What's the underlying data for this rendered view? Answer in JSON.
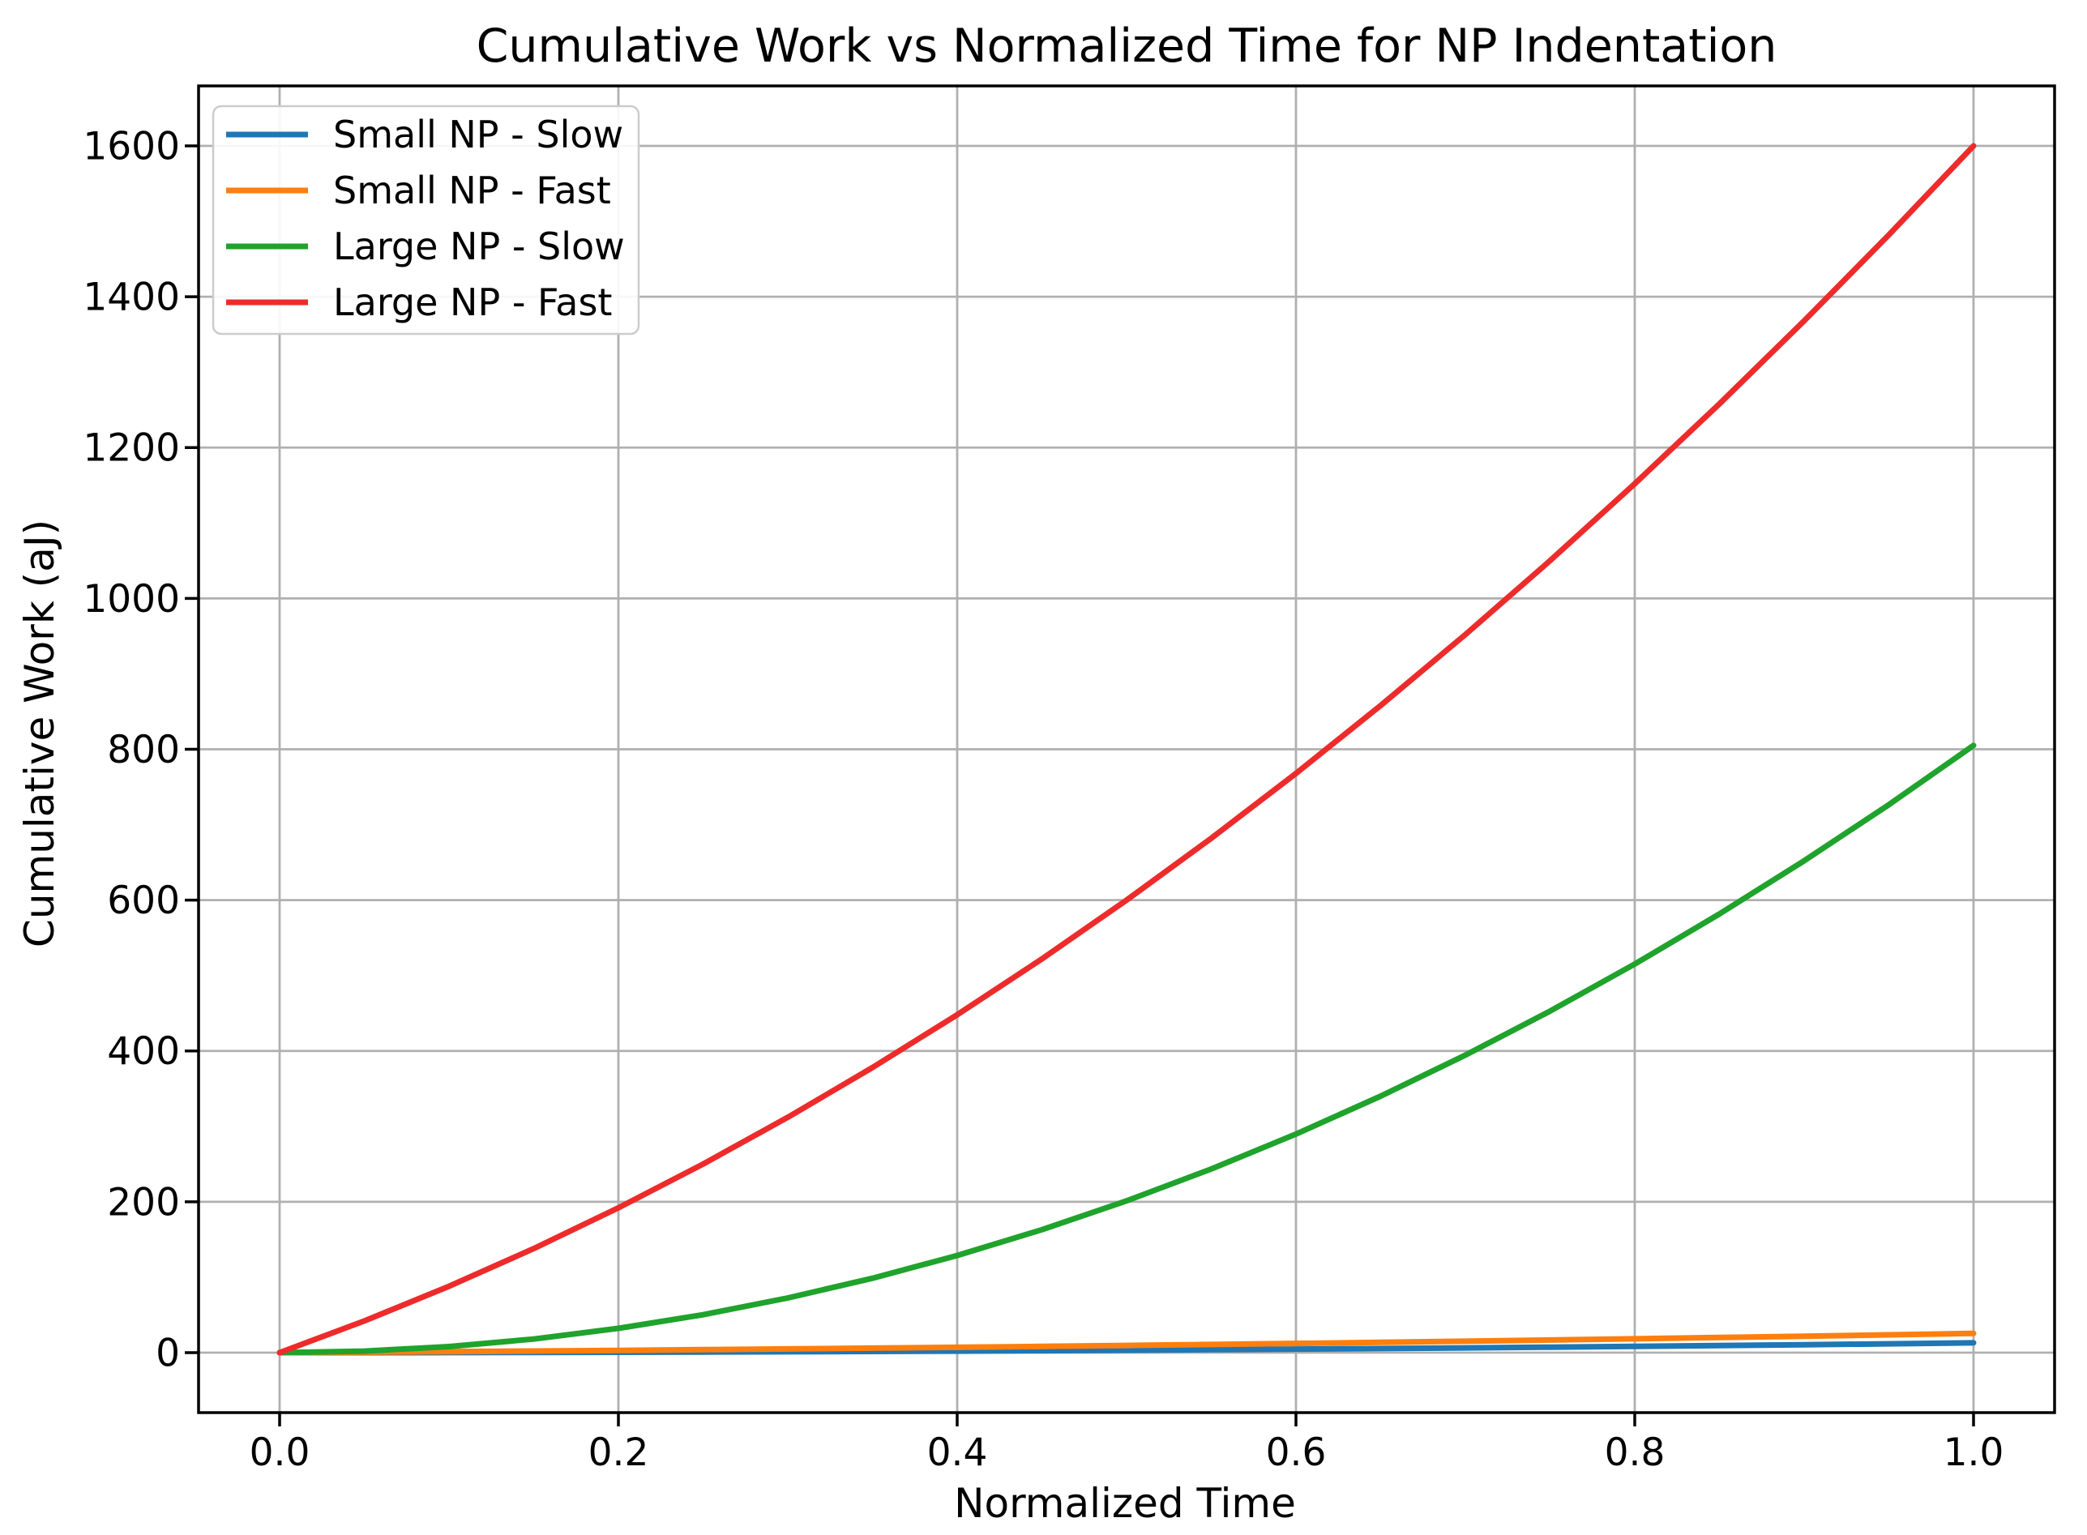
{
  "chart_data": {
    "type": "line",
    "title": "Cumulative Work vs Normalized Time for NP Indentation",
    "xlabel": "Normalized Time",
    "ylabel": "Cumulative Work (aJ)",
    "xlim": [
      -0.05,
      1.05
    ],
    "ylim": [
      -80,
      1680
    ],
    "grid": true,
    "legend_position": "upper left",
    "xticks": {
      "values": [
        0.0,
        0.2,
        0.4,
        0.6,
        0.8,
        1.0
      ],
      "labels": [
        "0.0",
        "0.2",
        "0.4",
        "0.6",
        "0.8",
        "1.0"
      ]
    },
    "yticks": {
      "values": [
        0,
        200,
        400,
        600,
        800,
        1000,
        1200,
        1400,
        1600
      ],
      "labels": [
        "0",
        "200",
        "400",
        "600",
        "800",
        "1000",
        "1200",
        "1400",
        "1600"
      ]
    },
    "x": [
      0,
      0.05,
      0.1,
      0.15,
      0.2,
      0.25,
      0.3,
      0.35,
      0.4,
      0.45,
      0.5,
      0.55,
      0.6,
      0.65,
      0.7,
      0.75,
      0.8,
      0.85,
      0.9,
      0.95,
      1.0
    ],
    "series": [
      {
        "name": "Small NP - Slow",
        "color": "#1f77b4",
        "values": [
          0,
          0.03,
          0.13,
          0.29,
          0.52,
          0.81,
          1.17,
          1.59,
          2.08,
          2.63,
          3.25,
          3.93,
          4.68,
          5.49,
          6.37,
          7.31,
          8.32,
          9.39,
          10.53,
          11.73,
          13
        ]
      },
      {
        "name": "Small NP - Fast",
        "color": "#ff7f0e",
        "values": [
          0,
          0.67,
          1.4,
          2.2,
          3.06,
          3.98,
          4.97,
          6.02,
          7.14,
          8.32,
          9.56,
          10.87,
          12.24,
          13.67,
          15.17,
          16.73,
          18.36,
          20.05,
          21.8,
          23.62,
          25.5
        ]
      },
      {
        "name": "Large NP - Slow",
        "color": "#1fa32c",
        "values": [
          0,
          2,
          8.1,
          18.1,
          32.2,
          50.3,
          72.5,
          98.6,
          128.8,
          163,
          201.3,
          243.5,
          289.8,
          340.1,
          394.5,
          452.8,
          515.2,
          581.6,
          652.1,
          726.5,
          805
        ]
      },
      {
        "name": "Large NP - Fast",
        "color": "#ee2b2b",
        "values": [
          0,
          42,
          88,
          138,
          192,
          250,
          312,
          378,
          448,
          522,
          600,
          682,
          768,
          858,
          952,
          1050,
          1152,
          1258,
          1368,
          1482,
          1600
        ]
      }
    ]
  }
}
